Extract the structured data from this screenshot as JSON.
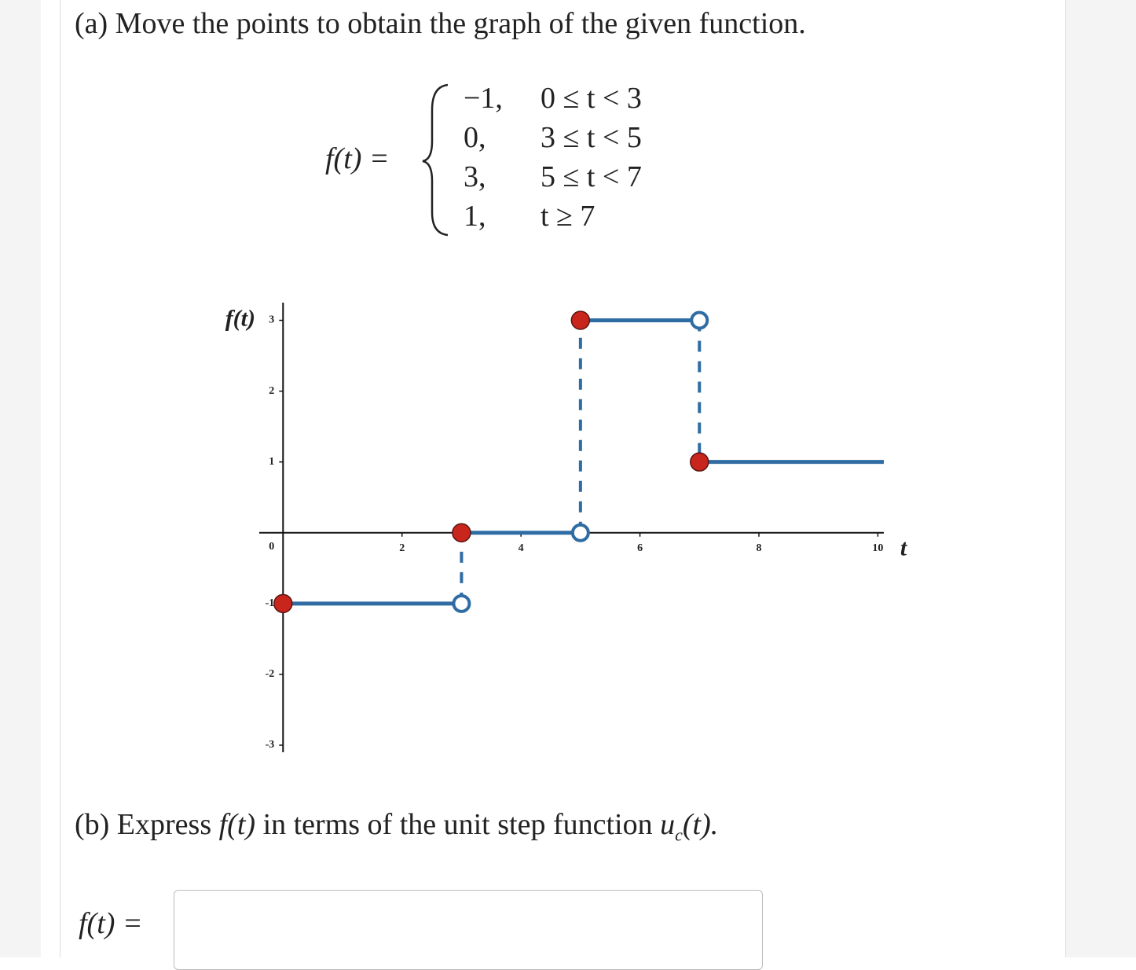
{
  "part_a": {
    "title": "(a) Move the points to obtain the graph of the given function."
  },
  "piecewise": {
    "lhs": "f(t) =",
    "cases": [
      {
        "value": "−1,",
        "condition": "0 ≤ t < 3"
      },
      {
        "value": "0,",
        "condition": "3 ≤ t < 5"
      },
      {
        "value": "3,",
        "condition": "5 ≤ t < 7"
      },
      {
        "value": "1,",
        "condition": "t ≥ 7"
      }
    ]
  },
  "chart_data": {
    "type": "step",
    "x_label": "t",
    "y_label": "f(t)",
    "x": [
      0,
      3,
      5,
      7
    ],
    "values": [
      -1,
      0,
      3,
      1
    ],
    "color": "#2f6ca3",
    "point_color": "#c8251d",
    "xlim": [
      -0.4,
      10.1
    ],
    "ylim": [
      -3.1,
      3.25
    ],
    "xticks": [
      2,
      4,
      6,
      8,
      10
    ],
    "yticks": [
      -3,
      -2,
      -1,
      0,
      1,
      2,
      3
    ]
  },
  "part_b": {
    "prefix": "(b) Express",
    "func": "f(t)",
    "middle": "in terms of the unit step function",
    "u": "u",
    "sub": "c",
    "end": "(t)."
  },
  "answer": {
    "label": "f(t) ="
  }
}
